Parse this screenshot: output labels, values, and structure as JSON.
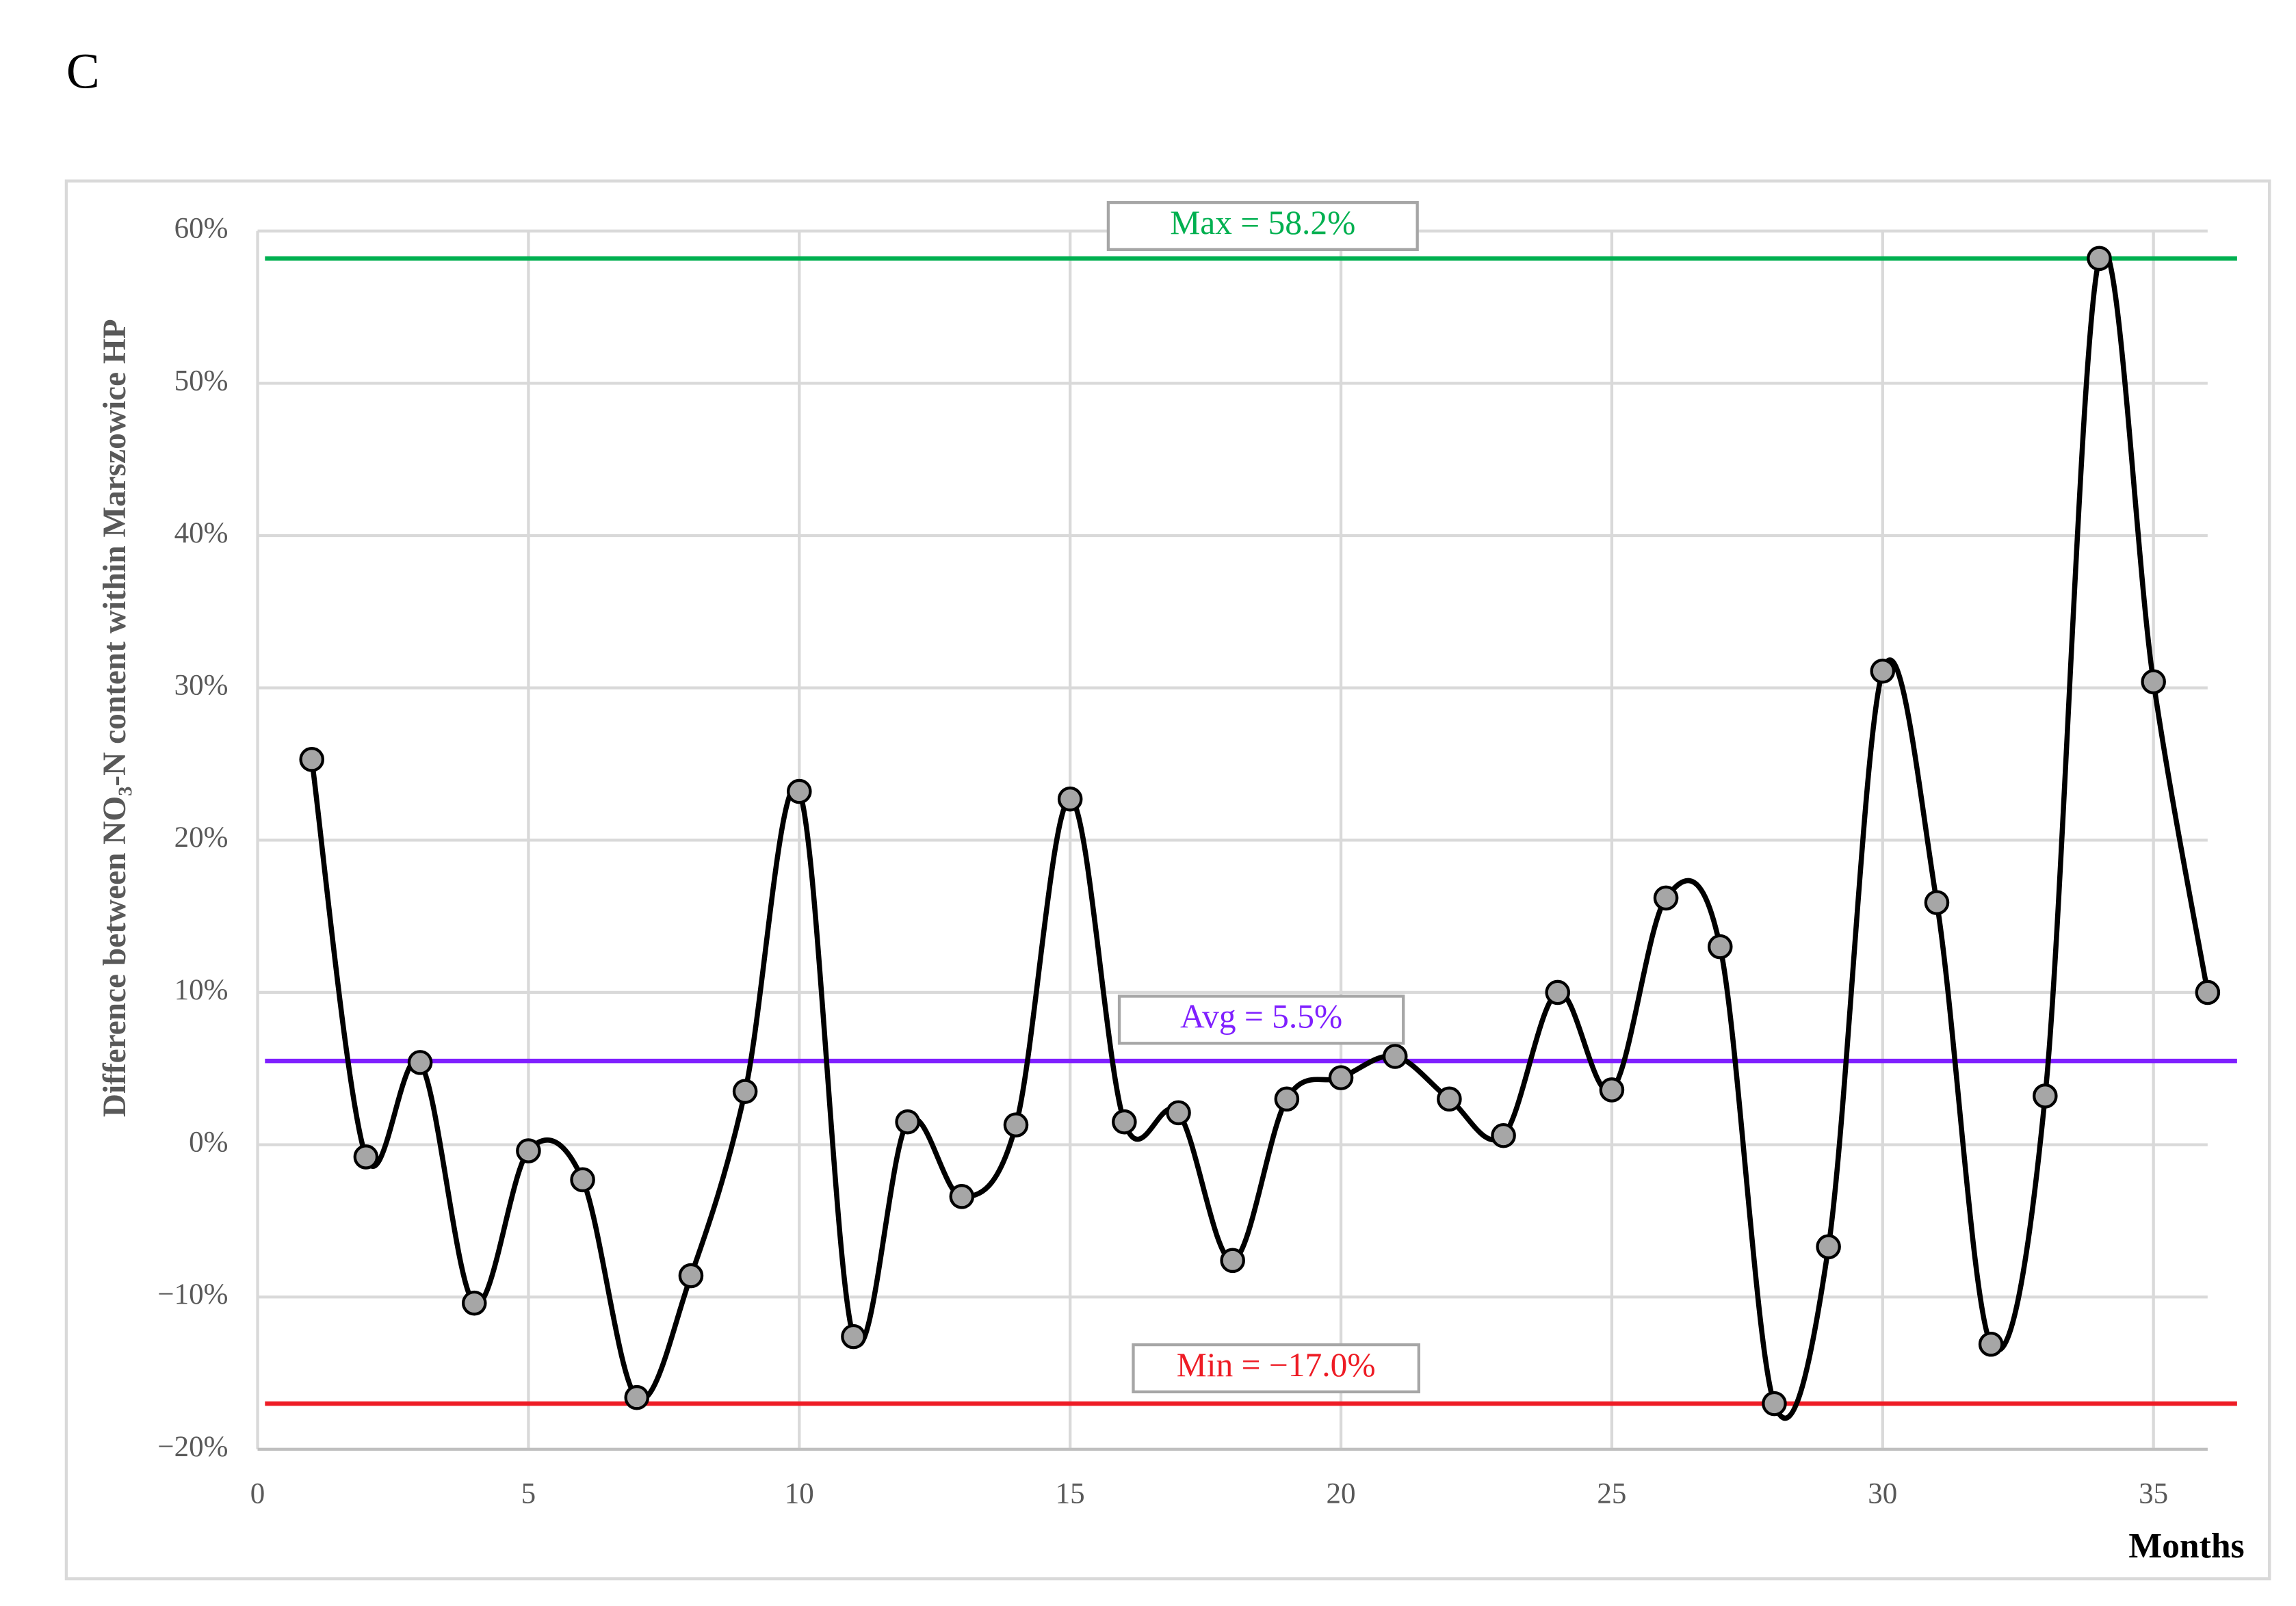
{
  "chart_data": {
    "type": "line",
    "panel_label": "C",
    "y_label": "Difference between NO₃-N content within Marszowice HP",
    "x_label": "Months",
    "x": [
      1,
      2,
      3,
      4,
      5,
      6,
      7,
      8,
      9,
      10,
      11,
      12,
      13,
      14,
      15,
      16,
      17,
      18,
      19,
      20,
      21,
      22,
      23,
      24,
      25,
      26,
      27,
      28,
      29,
      30,
      31,
      32,
      33,
      34,
      35,
      36
    ],
    "series": [
      {
        "color": "#000000",
        "marker_color": "#a6a6a6",
        "values": [
          25.3,
          -0.8,
          5.4,
          -10.4,
          -0.4,
          -2.3,
          -16.6,
          -8.6,
          3.5,
          23.2,
          -12.6,
          1.5,
          -3.4,
          1.3,
          22.7,
          1.5,
          2.1,
          -7.6,
          3.0,
          4.4,
          5.8,
          3.0,
          0.6,
          10.0,
          3.6,
          16.2,
          13.0,
          -17.0,
          -6.7,
          31.1,
          15.9,
          -13.1,
          3.2,
          58.2,
          30.4,
          10.0
        ]
      }
    ],
    "reference_lines": [
      {
        "label": "Max = 58.2%",
        "value": 58.2,
        "color": "#00b050"
      },
      {
        "label": "Avg = 5.5%",
        "value": 5.5,
        "color": "#7f1fff"
      },
      {
        "label": "Min = −17.0%",
        "value": -17.0,
        "color": "#ee1c25"
      }
    ],
    "xlim": [
      0,
      36
    ],
    "xticks": [
      0,
      5,
      10,
      15,
      20,
      25,
      30,
      35
    ],
    "ylim": [
      -20,
      60
    ],
    "yticks": [
      {
        "value": -20,
        "label": "−20%"
      },
      {
        "value": -10,
        "label": "−10%"
      },
      {
        "value": 0,
        "label": "0%"
      },
      {
        "value": 10,
        "label": "10%"
      },
      {
        "value": 20,
        "label": "20%"
      },
      {
        "value": 30,
        "label": "30%"
      },
      {
        "value": 40,
        "label": "40%"
      },
      {
        "value": 50,
        "label": "50%"
      },
      {
        "value": 60,
        "label": "60%"
      }
    ],
    "grid": true
  }
}
